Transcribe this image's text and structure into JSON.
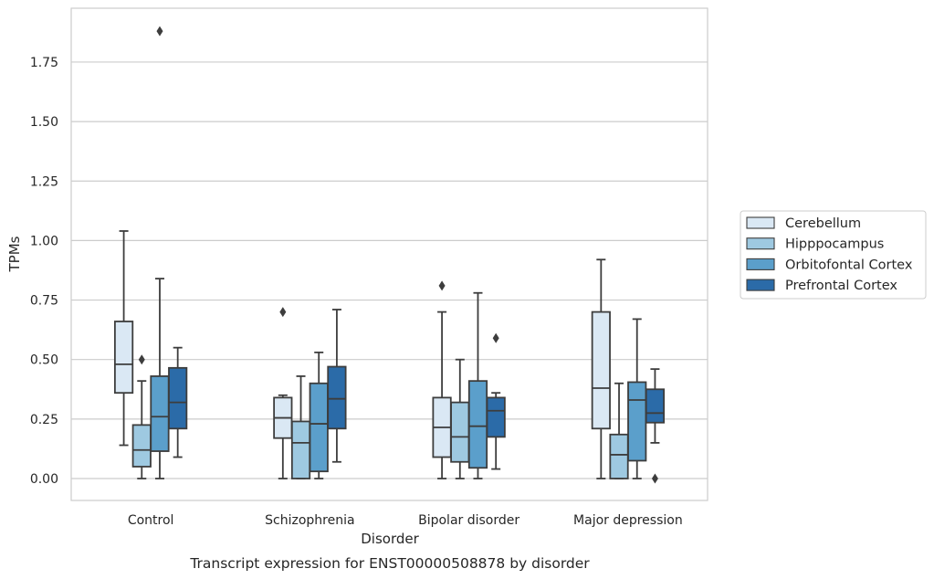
{
  "chart_data": {
    "type": "boxplot",
    "title": "",
    "caption": "Transcript expression for ENST00000508878 by disorder",
    "xlabel": "Disorder",
    "ylabel": "TPMs",
    "ylim": [
      -0.09,
      1.97
    ],
    "yticks": [
      "0.00",
      "0.25",
      "0.50",
      "0.75",
      "1.00",
      "1.25",
      "1.50",
      "1.75"
    ],
    "grid": "horizontal",
    "legend_position": "right",
    "categories": [
      "Control",
      "Schizophrenia",
      "Bipolar disorder",
      "Major depression"
    ],
    "series": [
      {
        "name": "Cerebellum",
        "color": "#dae8f4",
        "boxes": [
          {
            "whisker_low": 0.14,
            "q1": 0.36,
            "median": 0.48,
            "q3": 0.66,
            "whisker_high": 1.04,
            "outliers": []
          },
          {
            "whisker_low": 0.0,
            "q1": 0.17,
            "median": 0.255,
            "q3": 0.34,
            "whisker_high": 0.35,
            "outliers": [
              0.7
            ]
          },
          {
            "whisker_low": 0.0,
            "q1": 0.09,
            "median": 0.215,
            "q3": 0.34,
            "whisker_high": 0.7,
            "outliers": [
              0.81
            ]
          },
          {
            "whisker_low": 0.0,
            "q1": 0.21,
            "median": 0.38,
            "q3": 0.7,
            "whisker_high": 0.92,
            "outliers": []
          }
        ]
      },
      {
        "name": "Hipppocampus",
        "color": "#9ec9e1",
        "boxes": [
          {
            "whisker_low": 0.0,
            "q1": 0.05,
            "median": 0.12,
            "q3": 0.225,
            "whisker_high": 0.41,
            "outliers": [
              0.5
            ]
          },
          {
            "whisker_low": 0.0,
            "q1": 0.0,
            "median": 0.15,
            "q3": 0.24,
            "whisker_high": 0.43,
            "outliers": []
          },
          {
            "whisker_low": 0.0,
            "q1": 0.07,
            "median": 0.175,
            "q3": 0.32,
            "whisker_high": 0.5,
            "outliers": []
          },
          {
            "whisker_low": 0.0,
            "q1": 0.0,
            "median": 0.1,
            "q3": 0.185,
            "whisker_high": 0.4,
            "outliers": []
          }
        ]
      },
      {
        "name": "Orbitofontal Cortex",
        "color": "#5b9fcb",
        "boxes": [
          {
            "whisker_low": 0.0,
            "q1": 0.115,
            "median": 0.26,
            "q3": 0.43,
            "whisker_high": 0.84,
            "outliers": [
              1.88
            ]
          },
          {
            "whisker_low": 0.0,
            "q1": 0.03,
            "median": 0.23,
            "q3": 0.4,
            "whisker_high": 0.53,
            "outliers": []
          },
          {
            "whisker_low": 0.0,
            "q1": 0.045,
            "median": 0.22,
            "q3": 0.41,
            "whisker_high": 0.78,
            "outliers": []
          },
          {
            "whisker_low": 0.0,
            "q1": 0.075,
            "median": 0.33,
            "q3": 0.405,
            "whisker_high": 0.67,
            "outliers": []
          }
        ]
      },
      {
        "name": "Prefrontal Cortex",
        "color": "#2b6ba8",
        "boxes": [
          {
            "whisker_low": 0.09,
            "q1": 0.21,
            "median": 0.32,
            "q3": 0.465,
            "whisker_high": 0.55,
            "outliers": []
          },
          {
            "whisker_low": 0.07,
            "q1": 0.21,
            "median": 0.335,
            "q3": 0.47,
            "whisker_high": 0.71,
            "outliers": []
          },
          {
            "whisker_low": 0.04,
            "q1": 0.175,
            "median": 0.285,
            "q3": 0.34,
            "whisker_high": 0.36,
            "outliers": [
              0.59
            ]
          },
          {
            "whisker_low": 0.15,
            "q1": 0.235,
            "median": 0.275,
            "q3": 0.375,
            "whisker_high": 0.46,
            "outliers": [
              0.0
            ]
          }
        ]
      }
    ],
    "colors": {
      "grid": "#cccccc",
      "frame": "#cccccc",
      "line": "#3d3d3d"
    }
  }
}
